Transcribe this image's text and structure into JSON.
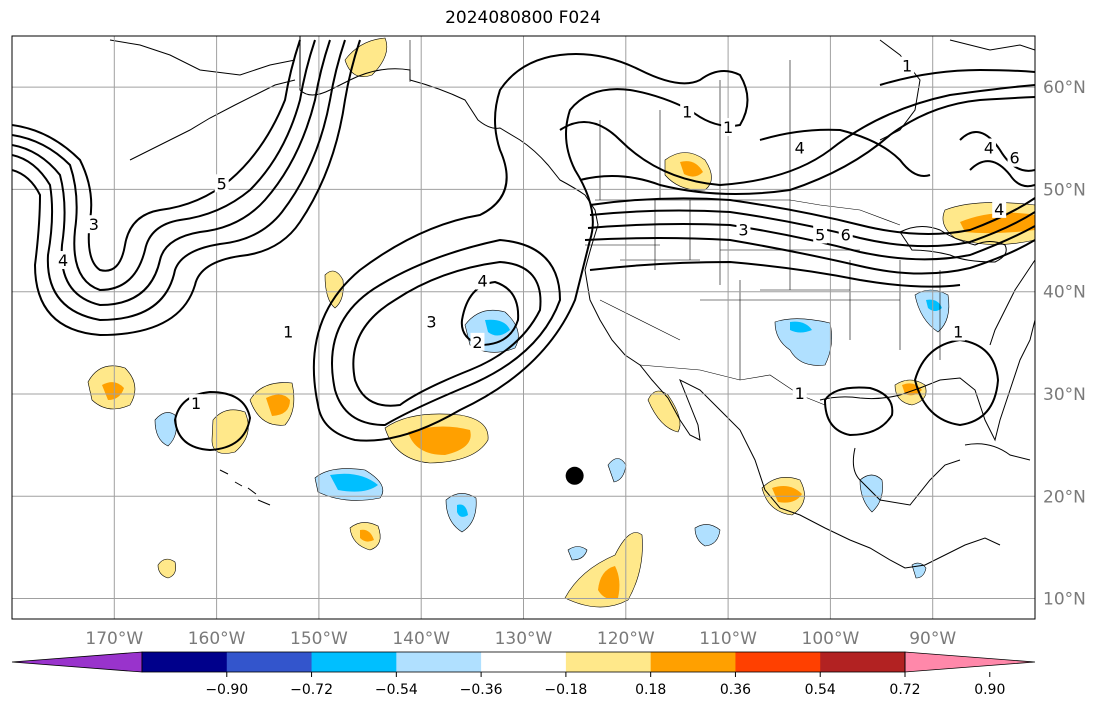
{
  "title": "2024080800 F024",
  "colors": {
    "land_coast": "#000000",
    "grid": "#a0a0a0",
    "contour": "#000000",
    "marker": "#000000"
  },
  "map": {
    "lon_range": [
      -180,
      -80
    ],
    "lat_range": [
      8,
      65
    ],
    "lon_ticks": [
      {
        "value": -170,
        "label": "170°W"
      },
      {
        "value": -160,
        "label": "160°W"
      },
      {
        "value": -150,
        "label": "150°W"
      },
      {
        "value": -140,
        "label": "140°W"
      },
      {
        "value": -130,
        "label": "130°W"
      },
      {
        "value": -120,
        "label": "120°W"
      },
      {
        "value": -110,
        "label": "110°W"
      },
      {
        "value": -100,
        "label": "100°W"
      },
      {
        "value": -90,
        "label": "90°W"
      }
    ],
    "lat_ticks": [
      {
        "value": 60,
        "label": "60°N"
      },
      {
        "value": 50,
        "label": "50°N"
      },
      {
        "value": 40,
        "label": "40°N"
      },
      {
        "value": 30,
        "label": "30°N"
      },
      {
        "value": 20,
        "label": "20°N"
      },
      {
        "value": 10,
        "label": "10°N"
      }
    ],
    "marker": {
      "lon": -125,
      "lat": 22
    }
  },
  "colorbar": {
    "colors": [
      "#9933cc",
      "#00008b",
      "#3355cc",
      "#00bfff",
      "#b0e0ff",
      "#ffffff",
      "#ffe88a",
      "#ffa000",
      "#ff4000",
      "#b22222",
      "#ff88aa"
    ],
    "ticks": [
      "−0.90",
      "−0.72",
      "−0.54",
      "−0.36",
      "−0.18",
      "0.18",
      "0.36",
      "0.54",
      "0.72",
      "0.90"
    ]
  },
  "contour_labels": [
    {
      "text": "1",
      "lon": -153,
      "lat": 36
    },
    {
      "text": "1",
      "lon": -162,
      "lat": 29
    },
    {
      "text": "2",
      "lon": -134.5,
      "lat": 35
    },
    {
      "text": "3",
      "lon": -139,
      "lat": 37
    },
    {
      "text": "4",
      "lon": -134,
      "lat": 41
    },
    {
      "text": "3",
      "lon": -172,
      "lat": 46.5
    },
    {
      "text": "4",
      "lon": -175,
      "lat": 43
    },
    {
      "text": "5",
      "lon": -159.5,
      "lat": 50.5
    },
    {
      "text": "1",
      "lon": -114,
      "lat": 57.5
    },
    {
      "text": "1",
      "lon": -92.5,
      "lat": 62
    },
    {
      "text": "1",
      "lon": -110,
      "lat": 56
    },
    {
      "text": "4",
      "lon": -103,
      "lat": 54
    },
    {
      "text": "3",
      "lon": -108.5,
      "lat": 46
    },
    {
      "text": "5",
      "lon": -101,
      "lat": 45.5
    },
    {
      "text": "6",
      "lon": -98.5,
      "lat": 45.5
    },
    {
      "text": "4",
      "lon": -84.5,
      "lat": 54
    },
    {
      "text": "6",
      "lon": -82,
      "lat": 53
    },
    {
      "text": "1",
      "lon": -103,
      "lat": 30
    },
    {
      "text": "1",
      "lon": -87.5,
      "lat": 36
    },
    {
      "text": "4",
      "lon": -83.5,
      "lat": 48
    }
  ]
}
